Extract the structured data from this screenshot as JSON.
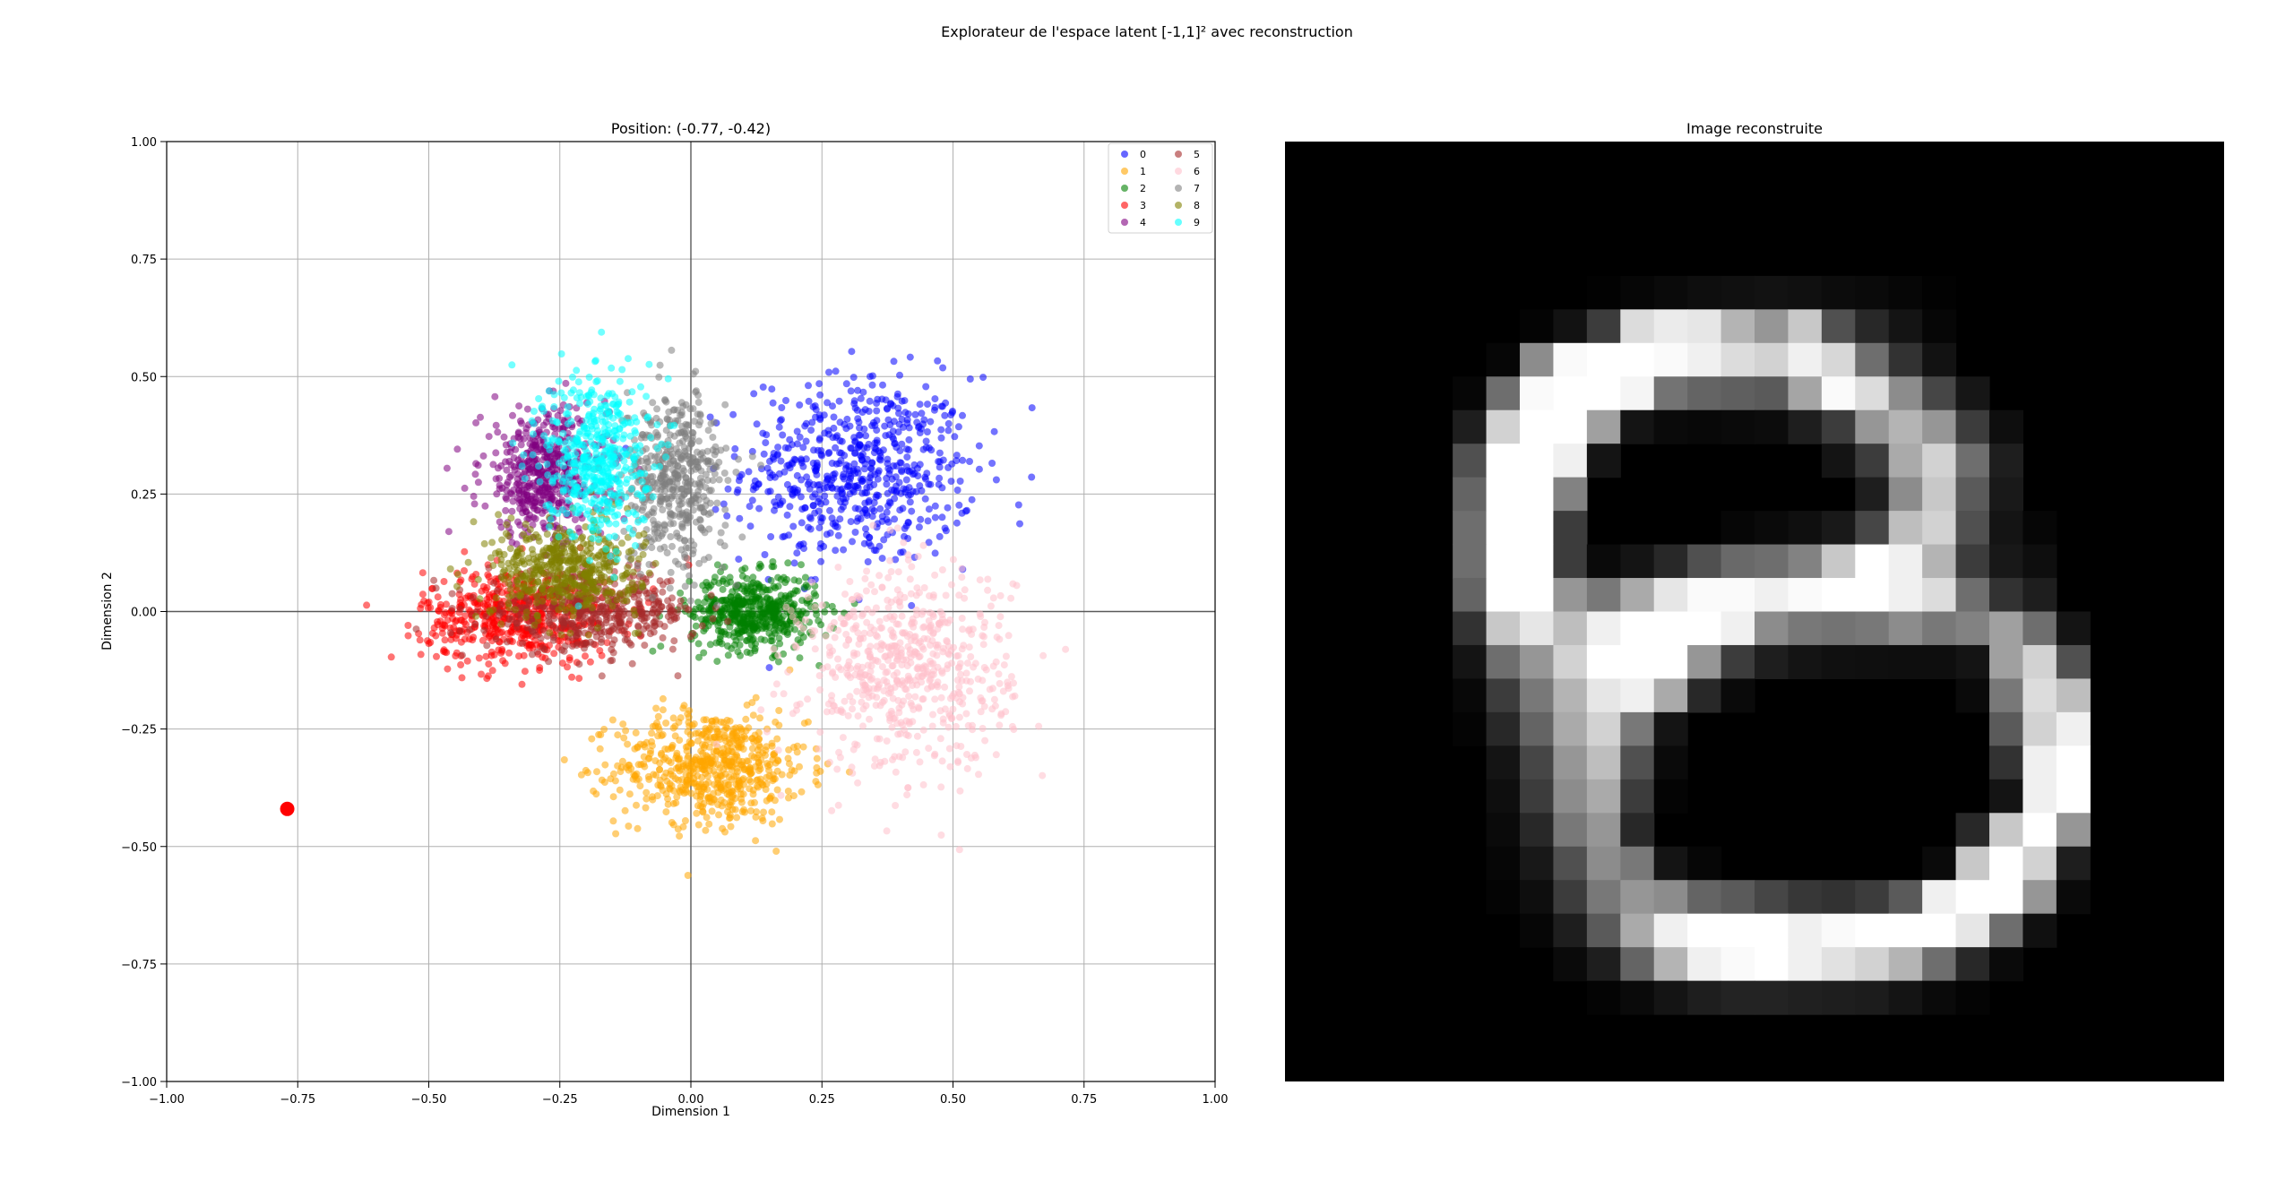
{
  "figure": {
    "suptitle": "Explorateur de l'espace latent [-1,1]² avec reconstruction"
  },
  "chart_data": [
    {
      "type": "scatter",
      "title": "Position: (-0.77, -0.42)",
      "xlabel": "Dimension 1",
      "ylabel": "Dimension 2",
      "xlim": [
        -1.0,
        1.0
      ],
      "ylim": [
        -1.0,
        1.0
      ],
      "xticks": [
        "−1.00",
        "−0.75",
        "−0.50",
        "−0.25",
        "0.00",
        "0.25",
        "0.50",
        "0.75",
        "1.00"
      ],
      "yticks": [
        "−1.00",
        "−0.75",
        "−0.50",
        "−0.25",
        "0.00",
        "0.25",
        "0.50",
        "0.75",
        "1.00"
      ],
      "grid": true,
      "legend_position": "top-right",
      "series": [
        {
          "name": "0",
          "color": "#0000ff",
          "center": [
            0.32,
            0.3
          ],
          "spread": [
            0.11,
            0.1
          ],
          "count": 620
        },
        {
          "name": "1",
          "color": "#ffa500",
          "center": [
            0.04,
            -0.33
          ],
          "spread": [
            0.09,
            0.06
          ],
          "count": 620
        },
        {
          "name": "2",
          "color": "#008000",
          "center": [
            0.12,
            0.0
          ],
          "spread": [
            0.06,
            0.04
          ],
          "count": 520
        },
        {
          "name": "3",
          "color": "#ff0000",
          "center": [
            -0.33,
            -0.01
          ],
          "spread": [
            0.09,
            0.05
          ],
          "count": 560
        },
        {
          "name": "4",
          "color": "#800080",
          "center": [
            -0.28,
            0.29
          ],
          "spread": [
            0.06,
            0.07
          ],
          "count": 480
        },
        {
          "name": "5",
          "color": "#a52a2a",
          "center": [
            -0.19,
            0.0
          ],
          "spread": [
            0.1,
            0.04
          ],
          "count": 480
        },
        {
          "name": "6",
          "color": "#ffc0cb",
          "center": [
            0.41,
            -0.12
          ],
          "spread": [
            0.1,
            0.11
          ],
          "count": 620
        },
        {
          "name": "7",
          "color": "#808080",
          "center": [
            -0.03,
            0.28
          ],
          "spread": [
            0.05,
            0.09
          ],
          "count": 480
        },
        {
          "name": "8",
          "color": "#808000",
          "center": [
            -0.24,
            0.09
          ],
          "spread": [
            0.07,
            0.05
          ],
          "count": 480
        },
        {
          "name": "9",
          "color": "#00ffff",
          "center": [
            -0.18,
            0.33
          ],
          "spread": [
            0.05,
            0.09
          ],
          "count": 480
        }
      ],
      "marker": {
        "name": "current-position",
        "x": -0.77,
        "y": -0.42,
        "color": "#ff0000"
      }
    },
    {
      "type": "heatmap",
      "title": "Image reconstruite",
      "colormap": "gray",
      "rows": 28,
      "cols": 28,
      "pixels": [
        [
          0,
          0,
          0,
          0,
          0,
          0,
          0,
          0,
          0,
          0,
          0,
          0,
          0,
          0,
          0,
          0,
          0,
          0,
          0,
          0,
          0,
          0,
          0,
          0,
          0,
          0,
          0,
          0
        ],
        [
          0,
          0,
          0,
          0,
          0,
          0,
          0,
          0,
          0,
          0,
          0,
          0,
          0,
          0,
          0,
          0,
          0,
          0,
          0,
          0,
          0,
          0,
          0,
          0,
          0,
          0,
          0,
          0
        ],
        [
          0,
          0,
          0,
          0,
          0,
          0,
          0,
          0,
          0,
          0,
          0,
          0,
          0,
          0,
          0,
          0,
          0,
          0,
          0,
          0,
          0,
          0,
          0,
          0,
          0,
          0,
          0,
          0
        ],
        [
          0,
          0,
          0,
          0,
          0,
          0,
          0,
          0,
          0,
          0,
          0,
          0,
          0,
          0,
          0,
          0,
          0,
          0,
          0,
          0,
          0,
          0,
          0,
          0,
          0,
          0,
          0,
          0
        ],
        [
          0,
          0,
          0,
          0,
          0,
          0,
          0,
          0,
          0,
          2,
          6,
          10,
          14,
          16,
          18,
          16,
          12,
          10,
          6,
          2,
          0,
          0,
          0,
          0,
          0,
          0,
          0,
          0
        ],
        [
          0,
          0,
          0,
          0,
          0,
          0,
          0,
          4,
          18,
          60,
          220,
          235,
          230,
          180,
          150,
          200,
          80,
          40,
          20,
          6,
          0,
          0,
          0,
          0,
          0,
          0,
          0,
          0
        ],
        [
          0,
          0,
          0,
          0,
          0,
          0,
          6,
          140,
          250,
          255,
          255,
          250,
          240,
          220,
          210,
          240,
          215,
          110,
          50,
          18,
          0,
          0,
          0,
          0,
          0,
          0,
          0,
          0
        ],
        [
          0,
          0,
          0,
          0,
          0,
          6,
          110,
          250,
          255,
          255,
          245,
          115,
          100,
          95,
          90,
          165,
          250,
          220,
          140,
          70,
          22,
          0,
          0,
          0,
          0,
          0,
          0,
          0
        ],
        [
          0,
          0,
          0,
          0,
          0,
          30,
          210,
          255,
          255,
          160,
          20,
          10,
          8,
          10,
          12,
          30,
          60,
          150,
          180,
          150,
          60,
          14,
          0,
          0,
          0,
          0,
          0,
          0
        ],
        [
          0,
          0,
          0,
          0,
          0,
          80,
          255,
          255,
          240,
          20,
          0,
          0,
          0,
          0,
          0,
          0,
          20,
          60,
          170,
          210,
          110,
          30,
          0,
          0,
          0,
          0,
          0,
          0
        ],
        [
          0,
          0,
          0,
          0,
          0,
          100,
          255,
          255,
          130,
          0,
          0,
          0,
          0,
          0,
          0,
          0,
          0,
          30,
          140,
          200,
          90,
          25,
          0,
          0,
          0,
          0,
          0,
          0
        ],
        [
          0,
          0,
          0,
          0,
          0,
          110,
          255,
          255,
          60,
          0,
          0,
          0,
          0,
          6,
          10,
          15,
          25,
          70,
          190,
          210,
          80,
          20,
          6,
          0,
          0,
          0,
          0,
          0
        ],
        [
          0,
          0,
          0,
          0,
          0,
          110,
          255,
          255,
          60,
          10,
          20,
          40,
          80,
          105,
          110,
          130,
          200,
          255,
          240,
          180,
          60,
          24,
          14,
          0,
          0,
          0,
          0,
          0
        ],
        [
          0,
          0,
          0,
          0,
          0,
          100,
          255,
          255,
          150,
          120,
          170,
          230,
          250,
          250,
          240,
          250,
          255,
          255,
          240,
          220,
          110,
          50,
          30,
          0,
          0,
          0,
          0,
          0
        ],
        [
          0,
          0,
          0,
          0,
          0,
          50,
          200,
          230,
          190,
          240,
          255,
          255,
          255,
          240,
          140,
          120,
          115,
          120,
          140,
          120,
          130,
          160,
          110,
          20,
          0,
          0,
          0,
          0
        ],
        [
          0,
          0,
          0,
          0,
          0,
          20,
          110,
          150,
          210,
          255,
          255,
          255,
          150,
          60,
          30,
          20,
          16,
          15,
          14,
          14,
          20,
          160,
          210,
          80,
          0,
          0,
          0,
          0
        ],
        [
          0,
          0,
          0,
          0,
          0,
          8,
          60,
          120,
          180,
          230,
          240,
          170,
          40,
          10,
          0,
          0,
          0,
          0,
          0,
          0,
          10,
          120,
          220,
          190,
          0,
          0,
          0,
          0
        ],
        [
          0,
          0,
          0,
          0,
          0,
          4,
          40,
          100,
          170,
          210,
          120,
          20,
          0,
          0,
          0,
          0,
          0,
          0,
          0,
          0,
          0,
          90,
          210,
          240,
          0,
          0,
          0,
          0
        ],
        [
          0,
          0,
          0,
          0,
          0,
          0,
          20,
          70,
          150,
          190,
          80,
          10,
          0,
          0,
          0,
          0,
          0,
          0,
          0,
          0,
          0,
          50,
          240,
          255,
          0,
          0,
          0,
          0
        ],
        [
          0,
          0,
          0,
          0,
          0,
          0,
          14,
          60,
          140,
          170,
          60,
          4,
          0,
          0,
          0,
          0,
          0,
          0,
          0,
          0,
          0,
          20,
          240,
          255,
          0,
          0,
          0,
          0
        ],
        [
          0,
          0,
          0,
          0,
          0,
          0,
          10,
          40,
          120,
          150,
          40,
          0,
          0,
          0,
          0,
          0,
          0,
          0,
          0,
          0,
          40,
          200,
          255,
          150,
          0,
          0,
          0,
          0
        ],
        [
          0,
          0,
          0,
          0,
          0,
          0,
          6,
          24,
          80,
          140,
          120,
          20,
          6,
          0,
          0,
          0,
          0,
          0,
          0,
          10,
          200,
          255,
          210,
          30,
          0,
          0,
          0,
          0
        ],
        [
          0,
          0,
          0,
          0,
          0,
          0,
          4,
          14,
          60,
          120,
          150,
          140,
          100,
          90,
          70,
          55,
          50,
          60,
          90,
          240,
          255,
          255,
          150,
          10,
          0,
          0,
          0,
          0
        ],
        [
          0,
          0,
          0,
          0,
          0,
          0,
          0,
          6,
          30,
          90,
          170,
          240,
          255,
          255,
          255,
          240,
          250,
          255,
          255,
          255,
          230,
          110,
          16,
          0,
          0,
          0,
          0,
          0
        ],
        [
          0,
          0,
          0,
          0,
          0,
          0,
          0,
          0,
          10,
          30,
          100,
          180,
          240,
          250,
          255,
          240,
          225,
          210,
          180,
          110,
          40,
          10,
          0,
          0,
          0,
          0,
          0,
          0
        ],
        [
          0,
          0,
          0,
          0,
          0,
          0,
          0,
          0,
          0,
          4,
          10,
          20,
          30,
          35,
          35,
          32,
          30,
          28,
          20,
          10,
          4,
          0,
          0,
          0,
          0,
          0,
          0,
          0
        ],
        [
          0,
          0,
          0,
          0,
          0,
          0,
          0,
          0,
          0,
          0,
          0,
          0,
          0,
          0,
          0,
          0,
          0,
          0,
          0,
          0,
          0,
          0,
          0,
          0,
          0,
          0,
          0,
          0
        ],
        [
          0,
          0,
          0,
          0,
          0,
          0,
          0,
          0,
          0,
          0,
          0,
          0,
          0,
          0,
          0,
          0,
          0,
          0,
          0,
          0,
          0,
          0,
          0,
          0,
          0,
          0,
          0,
          0
        ]
      ]
    }
  ]
}
